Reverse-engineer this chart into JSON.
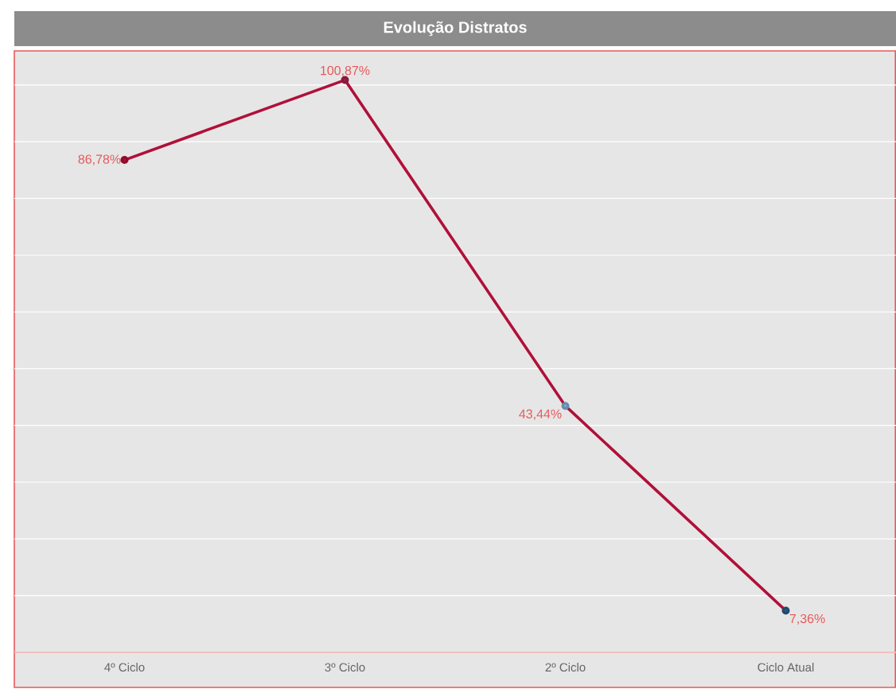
{
  "chart_data": {
    "type": "line",
    "title": "Evolução Distratos",
    "categories": [
      "4º Ciclo",
      "3º Ciclo",
      "2º Ciclo",
      "Ciclo Atual"
    ],
    "values": [
      86.78,
      100.87,
      43.44,
      7.36
    ],
    "colors": [
      "#b0103a",
      "#a8204a",
      "#7fb0d8",
      "#2b5c8a"
    ],
    "value_labels": [
      "86,78%",
      "100,87%",
      "43,44%",
      "7,36%"
    ],
    "ylim": [
      0,
      106
    ],
    "yticks": [
      {
        "value": 0,
        "label": null
      },
      {
        "value": 10,
        "label": null
      },
      {
        "value": 20,
        "label": null
      },
      {
        "value": 30,
        "label": null
      },
      {
        "value": 40,
        "label": null
      },
      {
        "value": 50,
        "label": null
      },
      {
        "value": 60,
        "label": null
      },
      {
        "value": 70,
        "label": null
      },
      {
        "value": 80,
        "label": null
      },
      {
        "value": 90,
        "label": null
      },
      {
        "value": 100,
        "label": null
      }
    ],
    "tick_labels": "x",
    "grid": "y",
    "marker": "circle",
    "line_style": "solid"
  }
}
